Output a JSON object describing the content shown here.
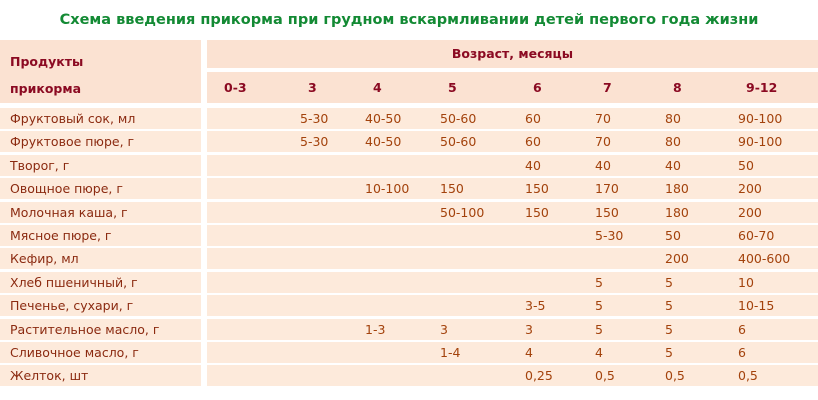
{
  "title": "Схема введения прикорма при грудном вскармливании детей первого года жизни",
  "header": {
    "products_line1": "Продукты",
    "products_line2": "прикорма",
    "age_label": "Возраст, месяцы",
    "ages": [
      "0-3",
      "3",
      "4",
      "5",
      "6",
      "7",
      "8",
      "9-12"
    ]
  },
  "colors": {
    "title": "#138a34",
    "header_text": "#8b0a22",
    "cell_text": "#a3420c",
    "row_bg": "#fdeadb",
    "header_bg": "#fbe2d2"
  },
  "rows": [
    {
      "name": "Фруктовый сок, мл",
      "values": [
        "",
        "5-30",
        "40-50",
        "50-60",
        "60",
        "70",
        "80",
        "90-100"
      ]
    },
    {
      "name": "Фруктовое пюре, г",
      "values": [
        "",
        "5-30",
        "40-50",
        "50-60",
        "60",
        "70",
        "80",
        "90-100"
      ]
    },
    {
      "name": "Творог, г",
      "values": [
        "",
        "",
        "",
        "",
        "40",
        "40",
        "40",
        "50"
      ]
    },
    {
      "name": "Овощное пюре, г",
      "values": [
        "",
        "",
        "10-100",
        "150",
        "150",
        "170",
        "180",
        "200"
      ]
    },
    {
      "name": "Молочная каша, г",
      "values": [
        "",
        "",
        "",
        "50-100",
        "150",
        "150",
        "180",
        "200"
      ]
    },
    {
      "name": "Мясное пюре, г",
      "values": [
        "",
        "",
        "",
        "",
        "",
        "5-30",
        "50",
        "60-70"
      ]
    },
    {
      "name": "Кефир, мл",
      "values": [
        "",
        "",
        "",
        "",
        "",
        "",
        "200",
        "400-600"
      ]
    },
    {
      "name": "Хлеб пшеничный, г",
      "values": [
        "",
        "",
        "",
        "",
        "",
        "5",
        "5",
        "10"
      ]
    },
    {
      "name": "Печенье, сухари, г",
      "values": [
        "",
        "",
        "",
        "",
        "3-5",
        "5",
        "5",
        "10-15"
      ]
    },
    {
      "name": "Растительное масло, г",
      "values": [
        "",
        "",
        "1-3",
        "3",
        "3",
        "5",
        "5",
        "6"
      ]
    },
    {
      "name": "Сливочное масло, г",
      "values": [
        "",
        "",
        "",
        "1-4",
        "4",
        "4",
        "5",
        "6"
      ]
    },
    {
      "name": "Желток, шт",
      "values": [
        "",
        "",
        "",
        "",
        "0,25",
        "0,5",
        "0,5",
        "0,5"
      ]
    }
  ]
}
